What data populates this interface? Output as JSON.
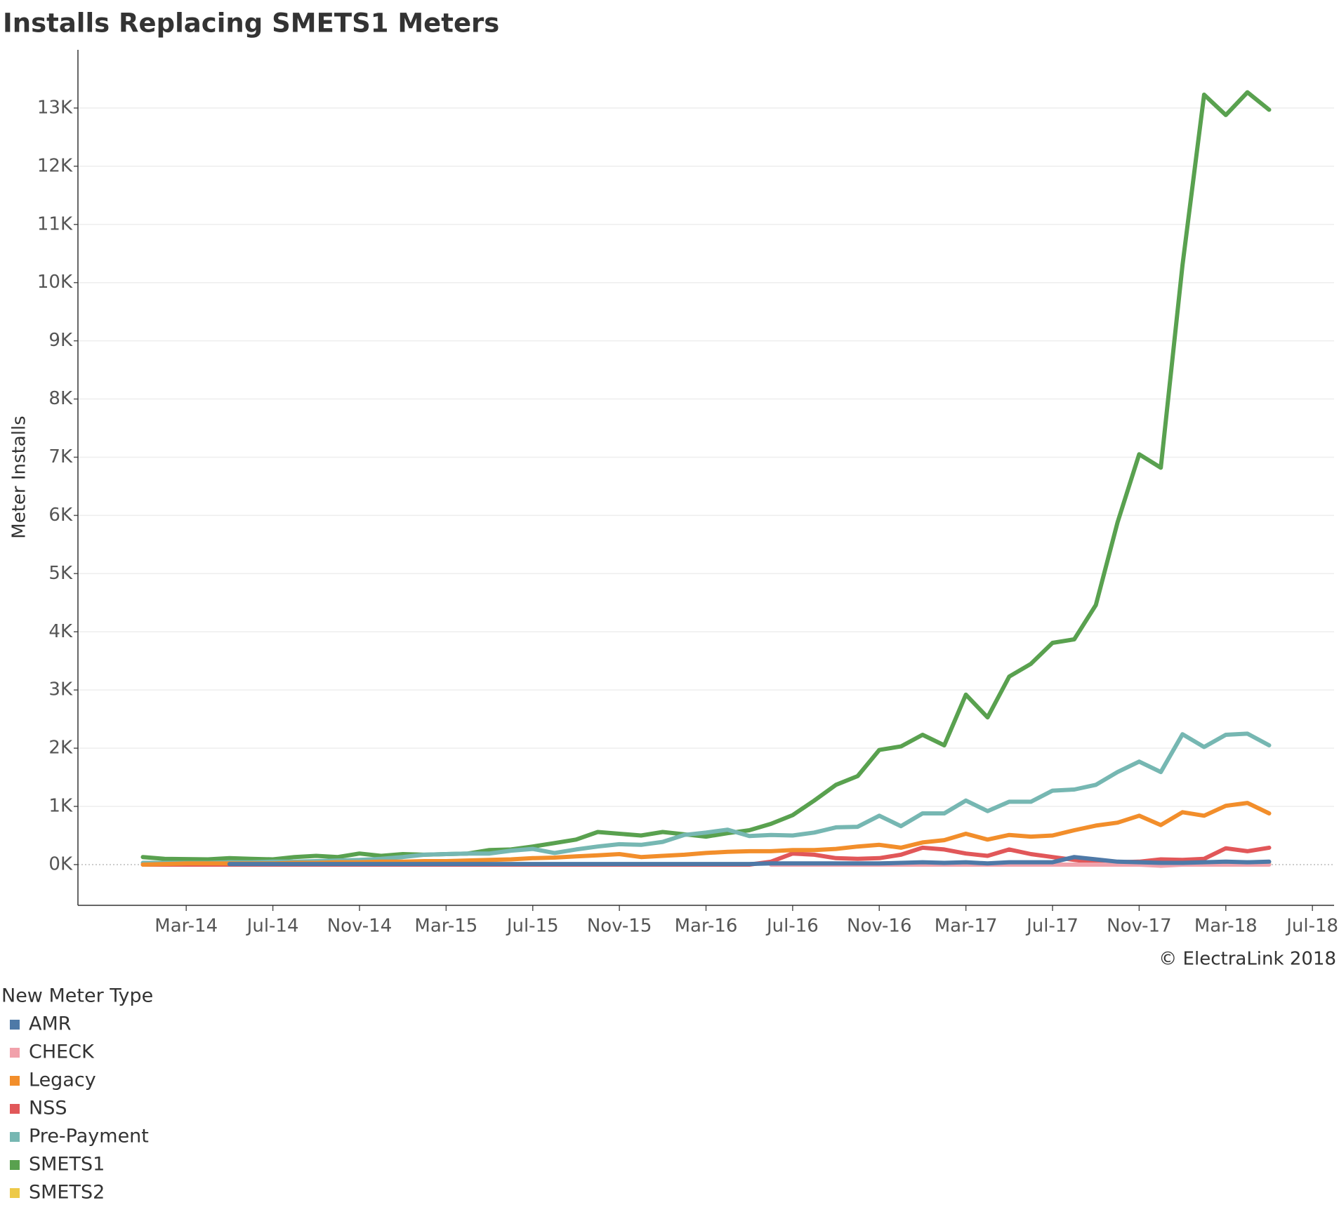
{
  "chart_data": {
    "type": "line",
    "title": "Installs Replacing SMETS1 Meters",
    "y_label": "Meter Installs",
    "annotation": "© ElectraLink 2018",
    "legend_title": "New Meter Type",
    "x": [
      "2014-01",
      "2014-02",
      "2014-03",
      "2014-04",
      "2014-05",
      "2014-06",
      "2014-07",
      "2014-08",
      "2014-09",
      "2014-10",
      "2014-11",
      "2014-12",
      "2015-01",
      "2015-02",
      "2015-03",
      "2015-04",
      "2015-05",
      "2015-06",
      "2015-07",
      "2015-08",
      "2015-09",
      "2015-10",
      "2015-11",
      "2015-12",
      "2016-01",
      "2016-02",
      "2016-03",
      "2016-04",
      "2016-05",
      "2016-06",
      "2016-07",
      "2016-08",
      "2016-09",
      "2016-10",
      "2016-11",
      "2016-12",
      "2017-01",
      "2017-02",
      "2017-03",
      "2017-04",
      "2017-05",
      "2017-06",
      "2017-07",
      "2017-08",
      "2017-09",
      "2017-10",
      "2017-11",
      "2017-12",
      "2018-01",
      "2018-02",
      "2018-03",
      "2018-04",
      "2018-05"
    ],
    "xlim": [
      "2013-10",
      "2018-08"
    ],
    "xticks": [
      {
        "value": "2014-03",
        "label": "Mar-14"
      },
      {
        "value": "2014-07",
        "label": "Jul-14"
      },
      {
        "value": "2014-11",
        "label": "Nov-14"
      },
      {
        "value": "2015-03",
        "label": "Mar-15"
      },
      {
        "value": "2015-07",
        "label": "Jul-15"
      },
      {
        "value": "2015-11",
        "label": "Nov-15"
      },
      {
        "value": "2016-03",
        "label": "Mar-16"
      },
      {
        "value": "2016-07",
        "label": "Jul-16"
      },
      {
        "value": "2016-11",
        "label": "Nov-16"
      },
      {
        "value": "2017-03",
        "label": "Mar-17"
      },
      {
        "value": "2017-07",
        "label": "Jul-17"
      },
      {
        "value": "2017-11",
        "label": "Nov-17"
      },
      {
        "value": "2018-03",
        "label": "Mar-18"
      },
      {
        "value": "2018-07",
        "label": "Jul-18"
      }
    ],
    "ylim": [
      -700,
      14000
    ],
    "yticks": [
      {
        "value": 0,
        "label": "0K"
      },
      {
        "value": 1000,
        "label": "1K"
      },
      {
        "value": 2000,
        "label": "2K"
      },
      {
        "value": 3000,
        "label": "3K"
      },
      {
        "value": 4000,
        "label": "4K"
      },
      {
        "value": 5000,
        "label": "5K"
      },
      {
        "value": 6000,
        "label": "6K"
      },
      {
        "value": 7000,
        "label": "7K"
      },
      {
        "value": 8000,
        "label": "8K"
      },
      {
        "value": 9000,
        "label": "9K"
      },
      {
        "value": 10000,
        "label": "10K"
      },
      {
        "value": 11000,
        "label": "11K"
      },
      {
        "value": 12000,
        "label": "12K"
      },
      {
        "value": 13000,
        "label": "13K"
      }
    ],
    "grid": true,
    "series": [
      {
        "name": "AMR",
        "color": "#4e79a7",
        "values": [
          null,
          null,
          null,
          null,
          10,
          10,
          10,
          10,
          10,
          10,
          10,
          10,
          10,
          10,
          10,
          10,
          10,
          10,
          10,
          10,
          10,
          10,
          10,
          10,
          10,
          10,
          10,
          10,
          10,
          20,
          20,
          20,
          20,
          20,
          20,
          30,
          40,
          30,
          40,
          20,
          40,
          40,
          40,
          130,
          90,
          50,
          40,
          30,
          30,
          40,
          50,
          40,
          50
        ]
      },
      {
        "name": "CHECK",
        "color": "#f1a1ab",
        "values": [
          null,
          null,
          null,
          null,
          null,
          null,
          null,
          null,
          null,
          null,
          null,
          null,
          null,
          null,
          null,
          null,
          null,
          null,
          null,
          null,
          null,
          null,
          null,
          null,
          null,
          null,
          null,
          null,
          null,
          0,
          0,
          0,
          0,
          0,
          0,
          0,
          0,
          0,
          0,
          0,
          0,
          0,
          0,
          0,
          0,
          0,
          0,
          -20,
          0,
          0,
          0,
          0,
          0
        ]
      },
      {
        "name": "Legacy",
        "color": "#f28e2b",
        "values": [
          0,
          10,
          20,
          20,
          20,
          20,
          20,
          30,
          30,
          40,
          40,
          50,
          50,
          60,
          60,
          70,
          80,
          90,
          110,
          120,
          140,
          160,
          180,
          130,
          150,
          170,
          200,
          220,
          230,
          230,
          250,
          250,
          270,
          310,
          340,
          290,
          380,
          420,
          530,
          430,
          510,
          480,
          500,
          590,
          670,
          720,
          840,
          680,
          900,
          840,
          1010,
          1060,
          880
        ]
      },
      {
        "name": "NSS",
        "color": "#e15759",
        "values": [
          0,
          0,
          0,
          0,
          0,
          0,
          0,
          0,
          0,
          0,
          0,
          0,
          0,
          0,
          0,
          0,
          0,
          0,
          0,
          0,
          0,
          0,
          0,
          0,
          0,
          0,
          0,
          0,
          0,
          50,
          190,
          170,
          110,
          100,
          110,
          170,
          290,
          260,
          190,
          150,
          260,
          180,
          130,
          80,
          40,
          40,
          50,
          90,
          80,
          100,
          280,
          230,
          290
        ]
      },
      {
        "name": "Pre-Payment",
        "color": "#76b7b2",
        "values": [
          30,
          30,
          30,
          30,
          40,
          40,
          50,
          50,
          60,
          70,
          80,
          100,
          130,
          170,
          180,
          190,
          190,
          240,
          270,
          200,
          260,
          310,
          350,
          340,
          390,
          510,
          550,
          600,
          490,
          510,
          500,
          550,
          640,
          650,
          840,
          660,
          880,
          880,
          1100,
          920,
          1080,
          1080,
          1270,
          1290,
          1370,
          1590,
          1770,
          1590,
          2240,
          2020,
          2230,
          2250,
          2050
        ]
      },
      {
        "name": "SMETS1",
        "color": "#59a14f",
        "values": [
          130,
          100,
          95,
          90,
          110,
          100,
          90,
          130,
          150,
          130,
          190,
          150,
          180,
          170,
          180,
          190,
          250,
          260,
          310,
          370,
          430,
          560,
          530,
          500,
          560,
          520,
          480,
          540,
          590,
          700,
          850,
          1100,
          1370,
          1520,
          1970,
          2030,
          2230,
          2050,
          2920,
          2530,
          3230,
          3450,
          3810,
          3870,
          4460,
          5880,
          7050,
          6820,
          10300,
          13230,
          12880,
          13270,
          12970
        ]
      },
      {
        "name": "SMETS2",
        "color": "#edc948",
        "values": [
          null,
          null,
          null,
          null,
          null,
          null,
          null,
          null,
          null,
          null,
          null,
          null,
          null,
          null,
          null,
          null,
          null,
          null,
          null,
          null,
          null,
          null,
          null,
          null,
          null,
          null,
          null,
          null,
          null,
          null,
          null,
          null,
          null,
          null,
          null,
          null,
          0,
          0,
          0,
          0,
          0,
          0,
          0,
          0,
          0,
          0,
          0,
          0,
          0,
          0,
          0,
          0,
          10
        ]
      }
    ]
  }
}
